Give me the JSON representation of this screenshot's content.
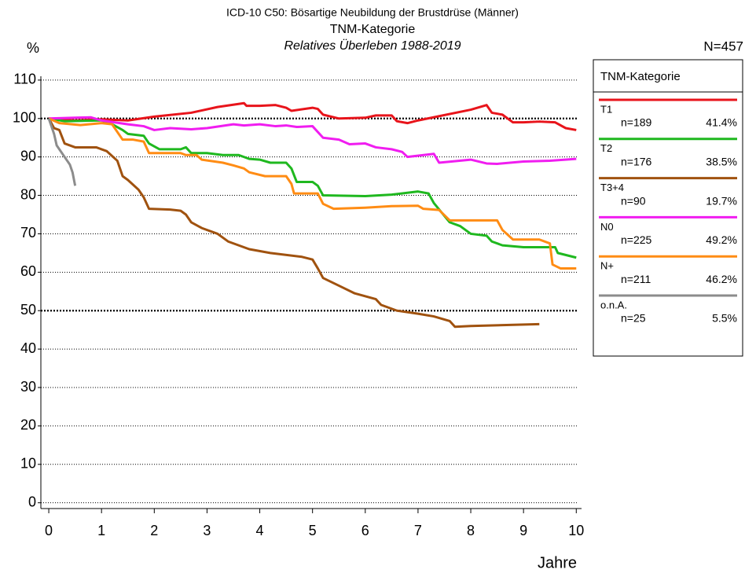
{
  "chart_data": {
    "type": "line",
    "title": "ICD-10 C50: Bösartige Neubildung der Brustdrüse (Männer)",
    "subtitle": "TNM-Kategorie",
    "subtitle2": "Relatives Überleben 1988-2019",
    "y_label": "%",
    "x_label": "Jahre",
    "annotation": "N=457",
    "legend_title": "TNM-Kategorie",
    "legend_position": "right",
    "grid": true,
    "highlight_gridlines": [
      50,
      100
    ],
    "xlim": [
      -0.15,
      10.1
    ],
    "ylim": [
      -1.5,
      111
    ],
    "xticks": [
      0,
      1,
      2,
      3,
      4,
      5,
      6,
      7,
      8,
      9,
      10
    ],
    "yticks": [
      0,
      10,
      20,
      30,
      40,
      50,
      60,
      70,
      80,
      90,
      100,
      110
    ],
    "series": [
      {
        "name": "T1",
        "color": "#e8141b",
        "count_label": "n=189",
        "share_label": "41.4%",
        "x": [
          0,
          0.5,
          1,
          1.5,
          2,
          2.7,
          3.2,
          3.7,
          3.75,
          4,
          4.3,
          4.5,
          4.6,
          5,
          5.1,
          5.2,
          5.5,
          6,
          6.2,
          6.5,
          6.6,
          6.8,
          7,
          8,
          8.3,
          8.4,
          8.6,
          8.8,
          9,
          9.3,
          9.6,
          9.8,
          10
        ],
        "values": [
          100,
          99.5,
          99.8,
          99.5,
          100.5,
          101.5,
          103,
          104,
          103.3,
          103.3,
          103.5,
          102.8,
          102,
          102.8,
          102.5,
          101,
          100,
          100.2,
          100.8,
          100.8,
          99.3,
          98.8,
          99.5,
          102.3,
          103.5,
          101.5,
          101,
          99,
          99,
          99.2,
          99,
          97.5,
          97
        ]
      },
      {
        "name": "T2",
        "color": "#1fb81f",
        "count_label": "n=176",
        "share_label": "38.5%",
        "x": [
          0,
          0.3,
          1,
          1.2,
          1.4,
          1.5,
          1.8,
          1.9,
          2.1,
          2.5,
          2.6,
          2.7,
          3,
          3.3,
          3.6,
          3.8,
          4,
          4.2,
          4.5,
          4.6,
          4.7,
          5,
          5.1,
          5.2,
          6,
          6.5,
          7,
          7.2,
          7.3,
          7.6,
          7.8,
          8,
          8.3,
          8.4,
          8.6,
          9,
          9.6,
          9.65,
          10
        ],
        "values": [
          100,
          99.3,
          99.5,
          98.5,
          97,
          96,
          95.5,
          93.5,
          92,
          92,
          92.5,
          91,
          91,
          90.5,
          90.5,
          89.5,
          89.3,
          88.5,
          88.5,
          87,
          83.5,
          83.5,
          82.5,
          80,
          79.8,
          80.2,
          81,
          80.5,
          78,
          73,
          72,
          70,
          69.5,
          68,
          67,
          66.5,
          66.5,
          65,
          63.8
        ]
      },
      {
        "name": "T3+4",
        "color": "#a0520f",
        "count_label": "n=90",
        "share_label": "19.7%",
        "x": [
          0,
          0.1,
          0.2,
          0.3,
          0.5,
          0.9,
          1.1,
          1.3,
          1.4,
          1.5,
          1.7,
          1.8,
          1.9,
          2.3,
          2.5,
          2.6,
          2.7,
          2.9,
          3.2,
          3.4,
          3.8,
          4.2,
          4.8,
          5,
          5.1,
          5.2,
          5.5,
          5.8,
          6.2,
          6.3,
          6.6,
          7,
          7.3,
          7.6,
          7.7,
          8,
          9.3
        ],
        "values": [
          100,
          97.5,
          97,
          93.5,
          92.5,
          92.5,
          91.5,
          89,
          85,
          84,
          81.5,
          79.5,
          76.5,
          76.3,
          76,
          75,
          73,
          71.5,
          70,
          68,
          66,
          65,
          64,
          63.3,
          61,
          58.5,
          56.5,
          54.5,
          53,
          51.5,
          50,
          49.2,
          48.5,
          47.3,
          45.8,
          46,
          46.5
        ]
      },
      {
        "name": "N0",
        "color": "#f01df0",
        "count_label": "n=225",
        "share_label": "49.2%",
        "x": [
          0,
          0.5,
          0.8,
          1,
          1.5,
          1.8,
          2,
          2.3,
          2.7,
          3,
          3.5,
          3.7,
          4,
          4.3,
          4.5,
          4.7,
          5,
          5.2,
          5.5,
          5.7,
          6,
          6.2,
          6.5,
          6.7,
          6.8,
          7.3,
          7.4,
          8,
          8.3,
          8.5,
          9,
          9.5,
          10
        ],
        "values": [
          100,
          100.2,
          100.3,
          99.5,
          98.5,
          98,
          97,
          97.5,
          97.2,
          97.5,
          98.5,
          98.2,
          98.5,
          98,
          98.2,
          97.8,
          98,
          95,
          94.5,
          93.3,
          93.5,
          92.5,
          92,
          91.3,
          90,
          90.8,
          88.5,
          89.3,
          88.3,
          88.2,
          88.8,
          89,
          89.5
        ]
      },
      {
        "name": "N+",
        "color": "#ff8c14",
        "count_label": "n=211",
        "share_label": "46.2%",
        "x": [
          0,
          0.2,
          0.6,
          1,
          1.2,
          1.4,
          1.6,
          1.8,
          1.9,
          2.5,
          2.6,
          2.8,
          2.9,
          3.3,
          3.5,
          3.7,
          3.8,
          4.1,
          4.5,
          4.6,
          4.65,
          5.1,
          5.2,
          5.4,
          6,
          6.5,
          7,
          7.1,
          7.4,
          7.6,
          8,
          8.5,
          8.6,
          8.8,
          9.3,
          9.5,
          9.55,
          9.7,
          10
        ],
        "values": [
          100,
          98.8,
          98.3,
          98.8,
          98.5,
          94.5,
          94.5,
          94,
          91,
          91,
          90.5,
          90.5,
          89.3,
          88.5,
          87.8,
          87,
          86,
          85,
          85,
          83,
          80.5,
          80.5,
          77.8,
          76.5,
          76.8,
          77.2,
          77.3,
          76.5,
          76.2,
          73.5,
          73.5,
          73.5,
          71,
          68.5,
          68.5,
          67.5,
          62,
          61,
          61
        ]
      },
      {
        "name": "o.n.A.",
        "color": "#8c8c8c",
        "count_label": "n=25",
        "share_label": "5.5%",
        "x": [
          0,
          0.1,
          0.15,
          0.3,
          0.4,
          0.45,
          0.5
        ],
        "values": [
          100,
          96,
          93,
          90,
          88,
          86,
          82.5
        ]
      }
    ]
  }
}
